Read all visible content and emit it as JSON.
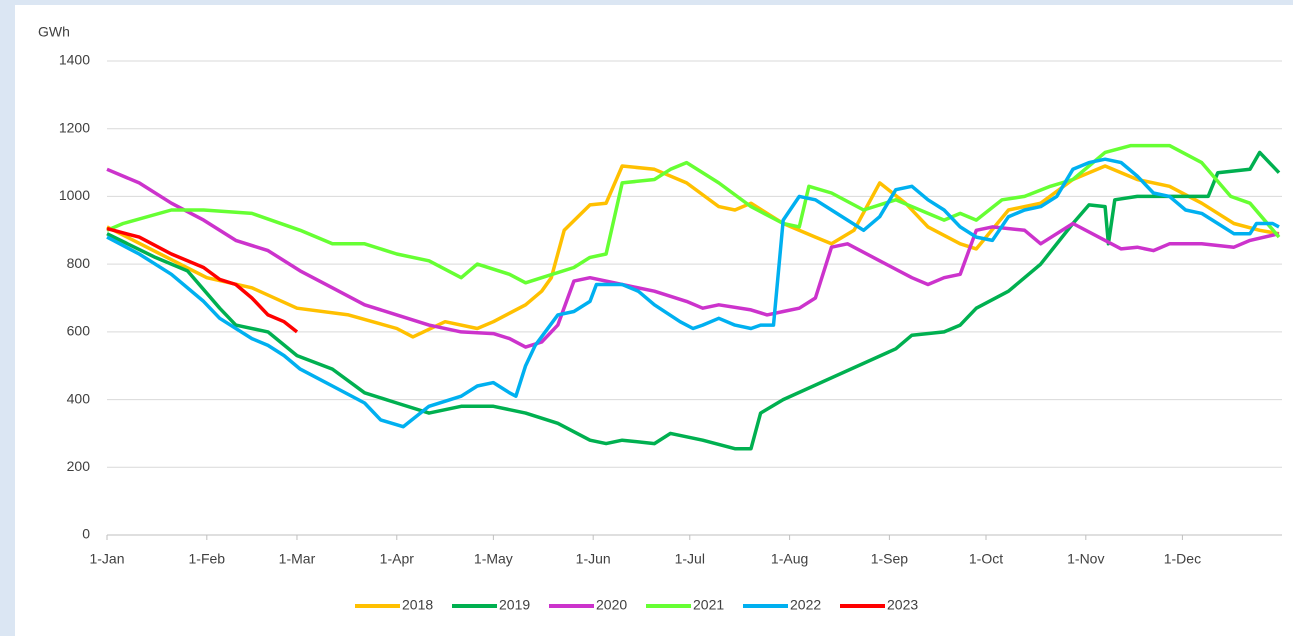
{
  "chart_data": {
    "type": "line",
    "y_label": "GWh",
    "xlim": [
      0,
      364
    ],
    "xticks": [
      {
        "value": 0,
        "label": "1-Jan"
      },
      {
        "value": 31,
        "label": "1-Feb"
      },
      {
        "value": 59,
        "label": "1-Mar"
      },
      {
        "value": 90,
        "label": "1-Apr"
      },
      {
        "value": 120,
        "label": "1-May"
      },
      {
        "value": 151,
        "label": "1-Jun"
      },
      {
        "value": 181,
        "label": "1-Jul"
      },
      {
        "value": 212,
        "label": "1-Aug"
      },
      {
        "value": 243,
        "label": "1-Sep"
      },
      {
        "value": 273,
        "label": "1-Oct"
      },
      {
        "value": 304,
        "label": "1-Nov"
      },
      {
        "value": 334,
        "label": "1-Dec"
      }
    ],
    "ylim": [
      0,
      1400
    ],
    "yticks": [
      0,
      200,
      400,
      600,
      800,
      1000,
      1200,
      1400
    ],
    "grid": true,
    "legend": "bottom",
    "series": [
      {
        "name": "2018",
        "color": "#ffc000",
        "x": [
          0,
          31,
          45,
          59,
          75,
          90,
          95,
          105,
          115,
          120,
          130,
          135,
          138,
          142,
          150,
          155,
          160,
          170,
          180,
          190,
          195,
          200,
          210,
          220,
          225,
          232,
          240,
          248,
          255,
          265,
          270,
          280,
          290,
          300,
          310,
          320,
          330,
          340,
          350,
          358,
          364
        ],
        "values": [
          910,
          760,
          730,
          670,
          650,
          610,
          585,
          630,
          610,
          630,
          680,
          720,
          760,
          900,
          975,
          980,
          1090,
          1080,
          1040,
          970,
          960,
          980,
          920,
          880,
          860,
          900,
          1040,
          980,
          910,
          860,
          845,
          960,
          980,
          1050,
          1090,
          1050,
          1030,
          980,
          920,
          900,
          890
        ]
      },
      {
        "name": "2019",
        "color": "#00b050",
        "x": [
          0,
          15,
          25,
          35,
          40,
          50,
          59,
          70,
          80,
          90,
          100,
          110,
          120,
          130,
          140,
          150,
          155,
          160,
          170,
          175,
          185,
          195,
          200,
          203,
          210,
          245,
          250,
          260,
          265,
          270,
          280,
          290,
          300,
          305,
          310,
          311,
          313,
          320,
          330,
          342,
          345,
          355,
          358,
          364
        ],
        "values": [
          890,
          820,
          780,
          670,
          620,
          600,
          530,
          490,
          420,
          390,
          360,
          380,
          380,
          360,
          330,
          280,
          270,
          280,
          270,
          300,
          280,
          255,
          255,
          360,
          400,
          550,
          590,
          600,
          620,
          670,
          720,
          800,
          920,
          975,
          970,
          860,
          990,
          1000,
          1000,
          1000,
          1070,
          1080,
          1130,
          1070
        ]
      },
      {
        "name": "2020",
        "color": "#cc33cc",
        "x": [
          0,
          10,
          20,
          30,
          40,
          50,
          60,
          70,
          80,
          90,
          100,
          110,
          120,
          125,
          130,
          135,
          140,
          145,
          150,
          160,
          170,
          180,
          185,
          190,
          200,
          205,
          210,
          215,
          220,
          225,
          230,
          240,
          250,
          255,
          260,
          265,
          270,
          275,
          285,
          290,
          300,
          310,
          315,
          320,
          325,
          330,
          340,
          350,
          355,
          364
        ],
        "values": [
          1080,
          1040,
          980,
          930,
          870,
          840,
          780,
          730,
          680,
          650,
          620,
          600,
          595,
          580,
          555,
          570,
          620,
          750,
          760,
          740,
          720,
          690,
          670,
          680,
          665,
          650,
          660,
          670,
          700,
          850,
          860,
          810,
          760,
          740,
          760,
          770,
          900,
          910,
          900,
          860,
          920,
          870,
          845,
          850,
          840,
          860,
          860,
          850,
          870,
          890
        ]
      },
      {
        "name": "2021",
        "color": "#66ff33",
        "x": [
          0,
          5,
          20,
          30,
          45,
          60,
          70,
          80,
          90,
          100,
          110,
          115,
          125,
          130,
          135,
          145,
          150,
          155,
          160,
          170,
          175,
          180,
          190,
          200,
          210,
          215,
          218,
          225,
          235,
          245,
          255,
          260,
          265,
          270,
          278,
          285,
          293,
          300,
          305,
          310,
          318,
          330,
          340,
          349,
          355,
          364
        ],
        "values": [
          900,
          920,
          960,
          960,
          950,
          900,
          860,
          860,
          830,
          810,
          760,
          800,
          770,
          745,
          760,
          790,
          820,
          830,
          1040,
          1050,
          1080,
          1100,
          1040,
          970,
          920,
          910,
          1030,
          1010,
          960,
          990,
          950,
          930,
          950,
          930,
          990,
          1000,
          1030,
          1050,
          1090,
          1130,
          1150,
          1150,
          1100,
          1000,
          980,
          880
        ]
      },
      {
        "name": "2022",
        "color": "#00b0f0",
        "x": [
          0,
          10,
          20,
          30,
          35,
          45,
          50,
          55,
          60,
          70,
          80,
          85,
          92,
          100,
          110,
          115,
          120,
          125,
          127,
          130,
          133,
          140,
          145,
          150,
          152,
          160,
          165,
          170,
          178,
          182,
          185,
          190,
          195,
          200,
          203,
          207,
          210,
          215,
          220,
          225,
          230,
          235,
          240,
          245,
          250,
          255,
          260,
          265,
          270,
          275,
          280,
          285,
          290,
          295,
          300,
          305,
          310,
          315,
          320,
          325,
          330,
          335,
          340,
          345,
          350,
          355,
          357,
          362,
          364
        ],
        "values": [
          880,
          830,
          770,
          690,
          640,
          580,
          560,
          530,
          490,
          440,
          390,
          340,
          320,
          380,
          410,
          440,
          450,
          420,
          410,
          500,
          560,
          650,
          660,
          690,
          740,
          740,
          720,
          680,
          630,
          610,
          620,
          640,
          620,
          610,
          620,
          620,
          930,
          1000,
          990,
          960,
          930,
          900,
          940,
          1020,
          1030,
          990,
          960,
          910,
          880,
          870,
          940,
          960,
          970,
          1000,
          1080,
          1100,
          1110,
          1100,
          1060,
          1010,
          1000,
          960,
          950,
          920,
          890,
          890,
          920,
          920,
          910
        ]
      },
      {
        "name": "2023",
        "color": "#ff0000",
        "x": [
          0,
          10,
          20,
          30,
          35,
          40,
          45,
          50,
          55,
          59
        ],
        "values": [
          905,
          880,
          830,
          790,
          755,
          740,
          700,
          650,
          630,
          600
        ]
      }
    ]
  }
}
